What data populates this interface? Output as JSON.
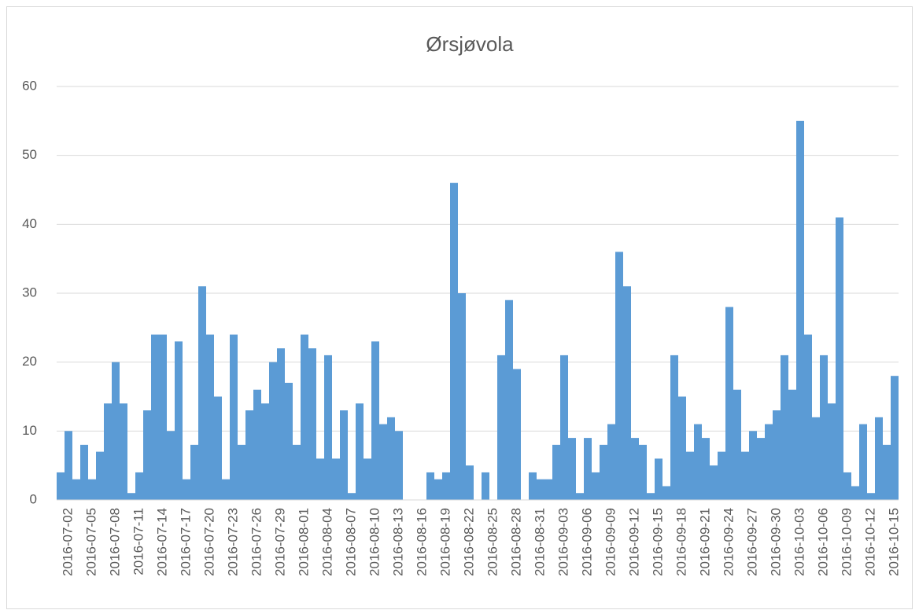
{
  "chart_data": {
    "type": "bar",
    "title": "Ørsjøvola",
    "categories": [
      null,
      "2016-07-02",
      null,
      null,
      "2016-07-05",
      null,
      null,
      "2016-07-08",
      null,
      null,
      "2016-07-11",
      null,
      null,
      "2016-07-14",
      null,
      null,
      "2016-07-17",
      null,
      null,
      "2016-07-20",
      null,
      null,
      "2016-07-23",
      null,
      null,
      "2016-07-26",
      null,
      null,
      "2016-07-29",
      null,
      null,
      "2016-08-01",
      null,
      null,
      "2016-08-04",
      null,
      null,
      "2016-08-07",
      null,
      null,
      "2016-08-10",
      null,
      null,
      "2016-08-13",
      null,
      null,
      "2016-08-16",
      null,
      null,
      "2016-08-19",
      null,
      null,
      "2016-08-22",
      null,
      null,
      "2016-08-25",
      null,
      null,
      "2016-08-28",
      null,
      null,
      "2016-08-31",
      null,
      null,
      "2016-09-03",
      null,
      null,
      "2016-09-06",
      null,
      null,
      "2016-09-09",
      null,
      null,
      "2016-09-12",
      null,
      null,
      "2016-09-15",
      null,
      null,
      "2016-09-18",
      null,
      null,
      "2016-09-21",
      null,
      null,
      "2016-09-24",
      null,
      null,
      "2016-09-27",
      null,
      null,
      "2016-09-30",
      null,
      null,
      "2016-10-03",
      null,
      null,
      "2016-10-06",
      null,
      null,
      "2016-10-09",
      null,
      null,
      "2016-10-12",
      null,
      null,
      "2016-10-15"
    ],
    "values": [
      4,
      10,
      3,
      8,
      3,
      7,
      14,
      20,
      14,
      1,
      4,
      13,
      24,
      24,
      10,
      23,
      3,
      8,
      31,
      24,
      15,
      3,
      24,
      8,
      13,
      16,
      14,
      20,
      22,
      17,
      8,
      24,
      22,
      6,
      21,
      6,
      13,
      1,
      14,
      6,
      23,
      11,
      12,
      10,
      0,
      0,
      0,
      4,
      3,
      4,
      46,
      30,
      5,
      0,
      4,
      0,
      21,
      29,
      19,
      0,
      4,
      3,
      3,
      8,
      21,
      9,
      1,
      9,
      4,
      8,
      11,
      36,
      31,
      9,
      8,
      1,
      6,
      2,
      21,
      15,
      7,
      11,
      9,
      5,
      7,
      28,
      16,
      7,
      10,
      9,
      11,
      13,
      21,
      16,
      55,
      24,
      12,
      21,
      14,
      41,
      4,
      2,
      11,
      1,
      12,
      8,
      18
    ],
    "color": "#5b9bd5",
    "ylim": [
      0,
      60
    ],
    "yticks": [
      0,
      10,
      20,
      30,
      40,
      50,
      60
    ],
    "grid": true
  }
}
